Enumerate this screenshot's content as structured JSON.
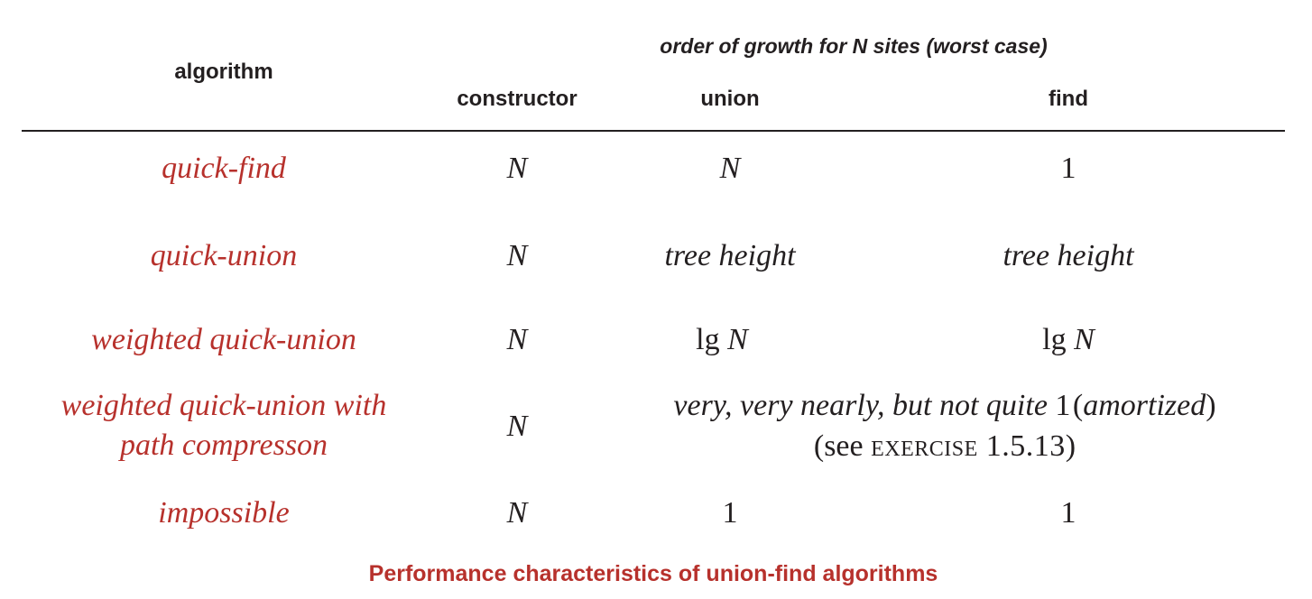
{
  "header": {
    "algorithm": "algorithm",
    "group": "order of growth for N sites (worst case)",
    "constructor": "constructor",
    "union": "union",
    "find": "find"
  },
  "rows": [
    {
      "algorithm": "quick-find",
      "constructor": "N",
      "union": "N",
      "find": "1"
    },
    {
      "algorithm": "quick-union",
      "constructor": "N",
      "union": "tree height",
      "find": "tree height"
    },
    {
      "algorithm": "weighted quick-union",
      "constructor": "N",
      "union_lg": "lg",
      "union_n": "N",
      "find_lg": "lg",
      "find_n": "N"
    },
    {
      "algorithm_line1": "weighted quick-union with",
      "algorithm_line2": "path compresson",
      "constructor": "N",
      "merged_a": "very, very nearly, but not quite",
      "merged_b": "1",
      "merged_c": "(",
      "merged_d": "amortized",
      "merged_e": ")",
      "merged2_a": "(see ",
      "merged2_b": "exercise 1.5.13",
      "merged2_c": ")"
    },
    {
      "algorithm": "impossible",
      "constructor": "N",
      "union": "1",
      "find": "1"
    }
  ],
  "caption": "Performance characteristics of union-find algorithms",
  "colors": {
    "accent": "#b7312c",
    "text": "#231f20"
  }
}
